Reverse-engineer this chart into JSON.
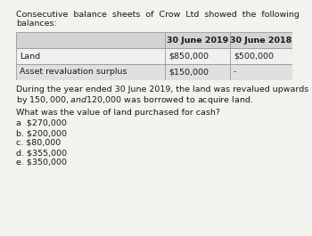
{
  "title_line1": "Consecutive  balance  sheets  of  Crow  Ltd  showed  the  following",
  "title_line2": "balances:",
  "col_headers": [
    "",
    "30 June 2019",
    "30 June 2018"
  ],
  "rows": [
    [
      "Land",
      "$850,000",
      "$500,000"
    ],
    [
      "Asset revaluation surplus",
      "$150,000",
      "-"
    ]
  ],
  "header_bg": "#d4d4d4",
  "row_bgs": [
    "#f0f0f0",
    "#e0e0e0"
  ],
  "paragraph_lines": [
    "During the year ended 30 June 2019, the land was revalued upwards",
    "by $150,000, and $120,000 was borrowed to acquire land."
  ],
  "question": "What was the value of land purchased for cash?",
  "options": [
    "a  $270,000",
    "b. $200,000",
    "c. $80,000",
    "d. $355,000",
    "e. $350,000"
  ],
  "bg_color": "#f2f2ee",
  "text_color": "#1a1a1a",
  "font_size": 6.8
}
